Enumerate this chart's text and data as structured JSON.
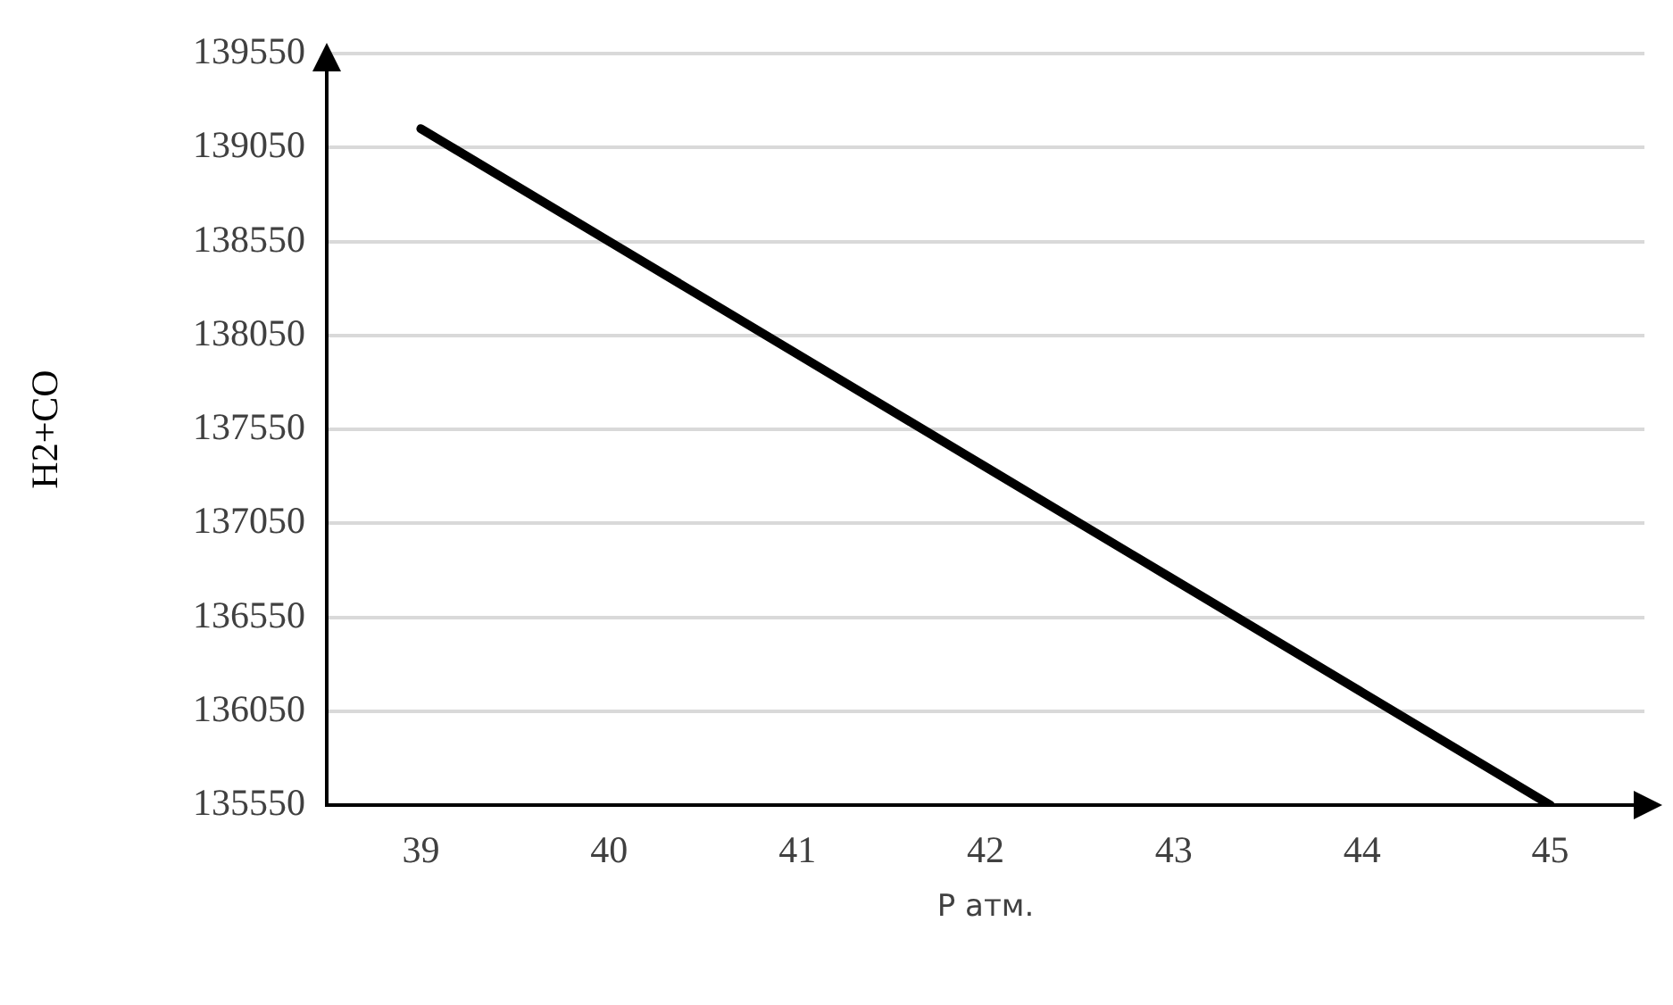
{
  "chart_data": {
    "type": "line",
    "xlabel": "P атм.",
    "ylabel": "H2+CO",
    "categories": [
      "39",
      "40",
      "41",
      "42",
      "43",
      "44",
      "45"
    ],
    "series": [
      {
        "color": "#000000",
        "values": [
          139150,
          138550,
          137950,
          137350,
          136750,
          136150,
          135550
        ]
      }
    ],
    "ylim": [
      135550,
      139550
    ],
    "yticks": [
      135550,
      136050,
      136550,
      137050,
      137550,
      138050,
      138550,
      139050,
      139550
    ],
    "grid": "y",
    "legend": false,
    "marker": "none",
    "line_style": "solid"
  }
}
